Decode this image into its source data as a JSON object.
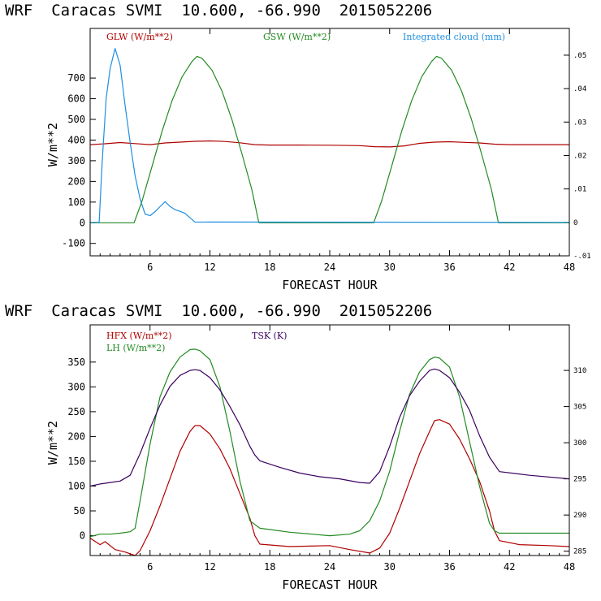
{
  "chart_data": [
    {
      "type": "line",
      "title": "WRF  Caracas SVMI  10.600, -66.990  2015052206",
      "xlabel": "FORECAST HOUR",
      "ylabel": "W/m**2",
      "xlim": [
        0,
        48
      ],
      "ylim": [
        -160,
        940
      ],
      "xticks": [
        6,
        12,
        18,
        24,
        30,
        36,
        42,
        48
      ],
      "yticks": [
        -100,
        0,
        100,
        200,
        300,
        400,
        500,
        600,
        700
      ],
      "y2lim": [
        -0.01,
        0.058
      ],
      "y2ticks": [
        -0.01,
        0,
        0.01,
        0.02,
        0.03,
        0.04,
        0.05
      ],
      "y2ticklabels": [
        "-.01",
        "0",
        ".01",
        ".02",
        ".03",
        ".04",
        ".05"
      ],
      "series": [
        {
          "name": "GLW (W/m**2)",
          "color": "#b00000",
          "axis": "left",
          "x": [
            0,
            1.5,
            3,
            4.5,
            6,
            7.5,
            9,
            10.5,
            12,
            13.5,
            15,
            16.5,
            18,
            21,
            24,
            27,
            28.5,
            30,
            31.5,
            33,
            34.5,
            36,
            37.5,
            39,
            40.5,
            42,
            45,
            48
          ],
          "y": [
            378,
            382,
            388,
            383,
            378,
            386,
            390,
            394,
            396,
            393,
            387,
            378,
            376,
            376,
            375,
            373,
            368,
            367,
            372,
            384,
            390,
            392,
            389,
            386,
            380,
            378,
            378,
            378
          ]
        },
        {
          "name": "GSW (W/m**2)",
          "color": "#228b22",
          "axis": "left",
          "x": [
            0,
            4.4,
            5.2,
            6.2,
            7.2,
            8.2,
            9.2,
            10.2,
            10.7,
            11.2,
            12.2,
            13.2,
            14.2,
            15.2,
            16.2,
            16.9,
            28.4,
            29.2,
            30.2,
            31.2,
            32.2,
            33.2,
            34.2,
            34.7,
            35.2,
            36.2,
            37.2,
            38.2,
            39.2,
            40.2,
            40.9,
            48
          ],
          "y": [
            0,
            0,
            105,
            273,
            442,
            590,
            705,
            780,
            805,
            796,
            738,
            637,
            500,
            335,
            160,
            0,
            0,
            105,
            273,
            442,
            590,
            705,
            780,
            805,
            796,
            738,
            637,
            500,
            335,
            160,
            0,
            0
          ]
        },
        {
          "name": "Integrated cloud (mm)",
          "color": "#1f8fe0",
          "axis": "right",
          "x": [
            0,
            0.9,
            1.2,
            1.6,
            2.0,
            2.5,
            3.0,
            3.5,
            4.0,
            4.5,
            5.0,
            5.5,
            6.0,
            6.5,
            7.0,
            7.5,
            8.0,
            8.5,
            9.0,
            9.5,
            10.0,
            10.5,
            48
          ],
          "y": [
            0,
            0,
            0.018,
            0.037,
            0.046,
            0.052,
            0.047,
            0.035,
            0.024,
            0.014,
            0.007,
            0.0025,
            0.002,
            0.0032,
            0.0047,
            0.0062,
            0.0048,
            0.0038,
            0.0033,
            0.0027,
            0.0014,
            0.0001,
            0
          ]
        }
      ]
    },
    {
      "type": "line",
      "title": "WRF  Caracas SVMI  10.600, -66.990  2015052206",
      "xlabel": "FORECAST HOUR",
      "ylabel": "W/m**2",
      "xlim": [
        0,
        48
      ],
      "ylim": [
        -40,
        425
      ],
      "xticks": [
        6,
        12,
        18,
        24,
        30,
        36,
        42,
        48
      ],
      "yticks": [
        0,
        50,
        100,
        150,
        200,
        250,
        300,
        350
      ],
      "y2lim": [
        284.4,
        316.3
      ],
      "y2ticks": [
        285,
        290,
        295,
        300,
        305,
        310
      ],
      "y2ticklabels": [
        "285",
        "290",
        "295",
        "300",
        "305",
        "310"
      ],
      "series": [
        {
          "name": "HFX (W/m**2)",
          "color": "#b00000",
          "axis": "left",
          "x": [
            0,
            1,
            1.5,
            2.5,
            3.5,
            4.5,
            5,
            6,
            7,
            8,
            9,
            10,
            10.5,
            11,
            12,
            13,
            14,
            15,
            16,
            16.5,
            17,
            20,
            24,
            26,
            28,
            29,
            30,
            31,
            32,
            33,
            34,
            34.5,
            35,
            36,
            37,
            38,
            39,
            40,
            40.5,
            41,
            43,
            46,
            48
          ],
          "y": [
            -5,
            -18,
            -12,
            -28,
            -33,
            -40,
            -30,
            10,
            60,
            115,
            170,
            210,
            222,
            222,
            205,
            175,
            135,
            85,
            35,
            0,
            -17,
            -22,
            -20,
            -28,
            -35,
            -25,
            5,
            55,
            110,
            165,
            210,
            232,
            234,
            225,
            195,
            155,
            110,
            50,
            10,
            -10,
            -18,
            -20,
            -22
          ]
        },
        {
          "name": "LH (W/m**2)",
          "color": "#228b22",
          "axis": "left",
          "x": [
            0,
            1,
            2,
            3,
            4,
            4.5,
            5,
            6,
            7,
            8,
            9,
            10,
            10.5,
            11,
            12,
            13,
            14,
            15,
            16,
            17,
            20,
            24,
            26,
            27,
            28,
            29,
            30,
            31,
            32,
            33,
            34,
            34.5,
            35,
            36,
            37,
            38,
            39,
            40,
            40.5,
            41,
            44,
            48
          ],
          "y": [
            -2,
            3,
            3,
            5,
            8,
            15,
            70,
            185,
            280,
            330,
            360,
            375,
            376,
            373,
            355,
            300,
            210,
            110,
            30,
            15,
            7,
            0,
            3,
            10,
            30,
            70,
            130,
            210,
            285,
            330,
            355,
            360,
            358,
            340,
            280,
            190,
            100,
            25,
            10,
            5,
            5,
            5
          ]
        },
        {
          "name": "TSK (K)",
          "color": "#3a0060",
          "axis": "right",
          "x": [
            0,
            1,
            2,
            3,
            4,
            5,
            6,
            7,
            8,
            9,
            10,
            10.5,
            11,
            12,
            13,
            14,
            15,
            16,
            16.5,
            17,
            19,
            21,
            23,
            25,
            27,
            28,
            29,
            30,
            31,
            32,
            33,
            34,
            34.5,
            35,
            36,
            37,
            38,
            39,
            40,
            40.5,
            41,
            44,
            48
          ],
          "y": [
            294,
            294.3,
            294.5,
            294.7,
            295.5,
            298.5,
            302,
            305.2,
            307.8,
            309.3,
            310,
            310.1,
            310,
            309,
            307.3,
            305,
            302.5,
            299.5,
            298.3,
            297.5,
            296.6,
            295.8,
            295.3,
            295,
            294.5,
            294.4,
            296,
            299.5,
            303.5,
            306.5,
            308.5,
            310,
            310.2,
            310,
            309,
            307,
            304.5,
            301,
            298,
            297,
            296,
            295.5,
            295
          ]
        }
      ]
    }
  ],
  "panels": [
    {
      "title": "WRF  Caracas SVMI  10.600, -66.990  2015052206",
      "xlabel": "FORECAST HOUR",
      "ylabel": "W/m**2",
      "legend": [
        {
          "label": "GLW (W/m**2)",
          "color": "#b00000"
        },
        {
          "label": "GSW (W/m**2)",
          "color": "#228b22"
        },
        {
          "label": "Integrated cloud (mm)",
          "color": "#1f8fe0"
        }
      ]
    },
    {
      "title": "WRF  Caracas SVMI  10.600, -66.990  2015052206",
      "xlabel": "FORECAST HOUR",
      "ylabel": "W/m**2",
      "legend": [
        {
          "label": "HFX (W/m**2)",
          "color": "#b00000"
        },
        {
          "label": "LH (W/m**2)",
          "color": "#228b22"
        },
        {
          "label": "TSK (K)",
          "color": "#3a0060"
        }
      ]
    }
  ]
}
